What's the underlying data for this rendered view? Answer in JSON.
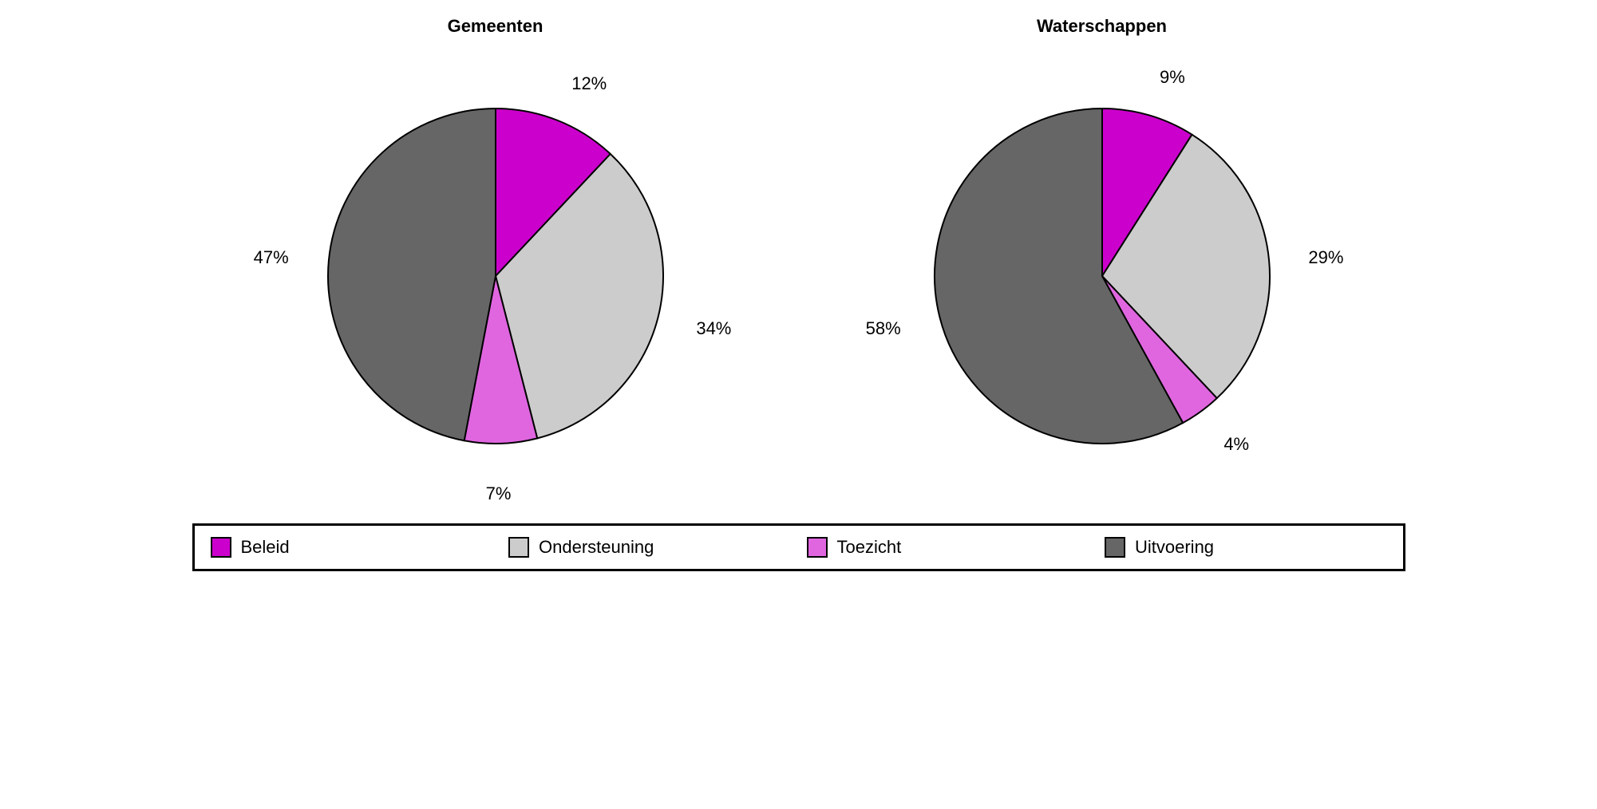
{
  "background_color": "#ffffff",
  "stroke_color": "#000000",
  "stroke_width": 2,
  "font_family": "Arial, Helvetica, sans-serif",
  "title_fontsize": 22,
  "label_fontsize": 22,
  "legend_fontsize": 22,
  "pie_radius": 210,
  "pie_container_size": 560,
  "charts": [
    {
      "title": "Gemeenten",
      "slices": [
        {
          "name": "Beleid",
          "value": 12,
          "color": "#cc00cc",
          "label": "12%"
        },
        {
          "name": "Ondersteuning",
          "value": 34,
          "color": "#cccccc",
          "label": "34%"
        },
        {
          "name": "Toezicht",
          "value": 7,
          "color": "#e066e0",
          "label": "7%"
        },
        {
          "name": "Uitvoering",
          "value": 47,
          "color": "#666666",
          "label": "47%"
        }
      ]
    },
    {
      "title": "Waterschappen",
      "slices": [
        {
          "name": "Beleid",
          "value": 9,
          "color": "#cc00cc",
          "label": "9%"
        },
        {
          "name": "Ondersteuning",
          "value": 29,
          "color": "#cccccc",
          "label": "29%"
        },
        {
          "name": "Toezicht",
          "value": 4,
          "color": "#e066e0",
          "label": "4%"
        },
        {
          "name": "Uitvoering",
          "value": 58,
          "color": "#666666",
          "label": "58%"
        }
      ]
    }
  ],
  "legend": {
    "border_color": "#000000",
    "border_width": 3,
    "items": [
      {
        "label": "Beleid",
        "color": "#cc00cc"
      },
      {
        "label": "Ondersteuning",
        "color": "#cccccc"
      },
      {
        "label": "Toezicht",
        "color": "#e066e0"
      },
      {
        "label": "Uitvoering",
        "color": "#666666"
      }
    ]
  }
}
